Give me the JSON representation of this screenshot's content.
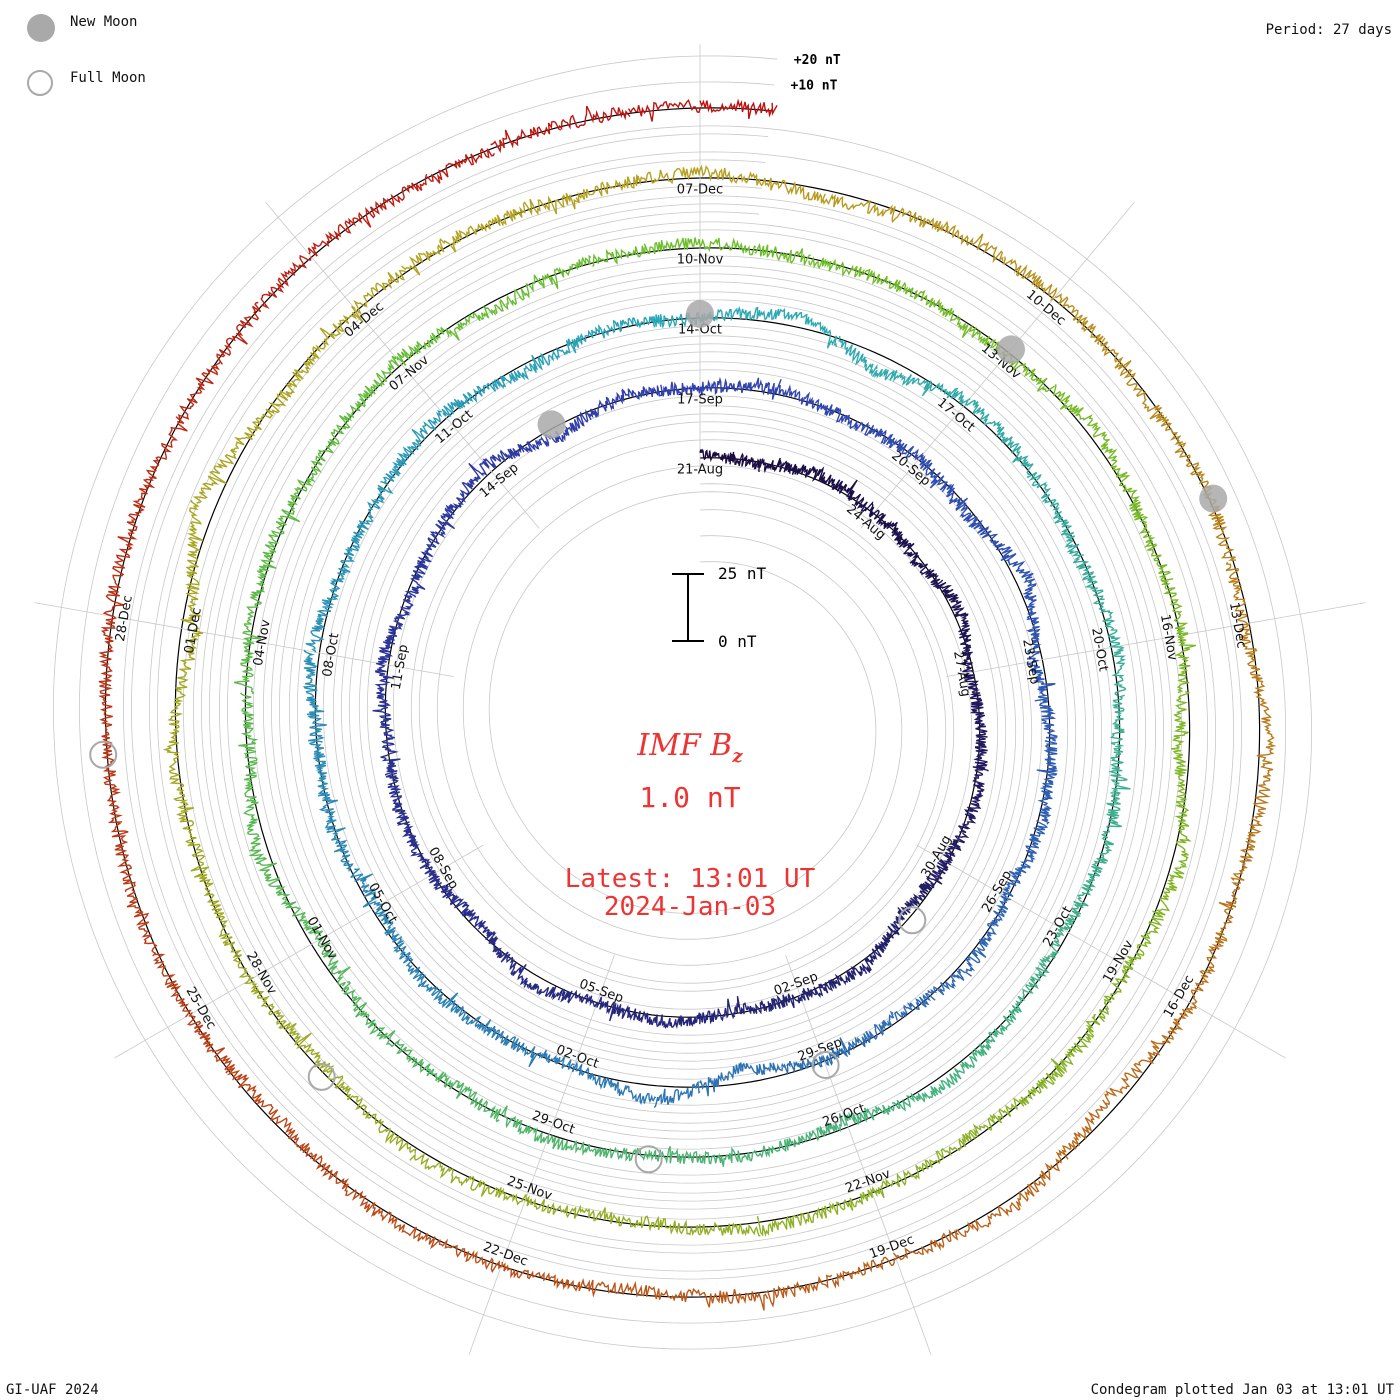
{
  "header": {
    "period": "Period: 27 days",
    "legend": [
      {
        "label": "New Moon",
        "icon": "new-moon-icon",
        "color": "#a9a9a9"
      },
      {
        "label": "Full Moon",
        "icon": "full-moon-icon",
        "color": "#a9a9a9"
      }
    ]
  },
  "footer": {
    "credit": "GI-UAF 2024",
    "plotted": "Condegram plotted Jan 03 at 13:01 UT"
  },
  "center": {
    "title_main": "IMF B",
    "title_sub": "z",
    "value": "1.0 nT",
    "latest_time": "Latest: 13:01 UT",
    "latest_date": "2024-Jan-03",
    "text_color": "#ee3333"
  },
  "scale_bar": {
    "top_label": "25 nT",
    "bottom_label": "0 nT",
    "span_nT": 25
  },
  "chart_data": {
    "type": "line",
    "title": "IMF Bz",
    "plot_style": "condegram spiral",
    "period_days": 27,
    "spiral_start": "2023-Aug-21",
    "spiral_end": "2024-Jan-03 13:01",
    "reference_levels_nT": [
      10,
      20
    ],
    "reference_labels": [
      "+10 nT",
      "+20 nT"
    ],
    "grid": true,
    "date_labels": [
      "21-Aug",
      "24-Aug",
      "27-Aug",
      "30-Aug",
      "02-Sep",
      "05-Sep",
      "08-Sep",
      "11-Sep",
      "14-Sep",
      "17-Sep",
      "20-Sep",
      "23-Sep",
      "26-Sep",
      "29-Sep",
      "02-Oct",
      "05-Oct",
      "08-Oct",
      "11-Oct",
      "14-Oct",
      "17-Oct",
      "20-Oct",
      "23-Oct",
      "26-Oct",
      "29-Oct",
      "01-Nov",
      "04-Nov",
      "07-Nov",
      "10-Nov",
      "13-Nov",
      "16-Nov",
      "19-Nov",
      "22-Nov",
      "25-Nov",
      "28-Nov",
      "01-Dec",
      "04-Dec",
      "07-Dec",
      "10-Dec",
      "13-Dec",
      "16-Dec",
      "19-Dec",
      "22-Dec",
      "25-Dec",
      "28-Dec"
    ],
    "rotations": [
      {
        "start": "2023-Aug-21",
        "color": "#1a0a40"
      },
      {
        "start": "2023-Sep-17",
        "color": "#3040b0"
      },
      {
        "start": "2023-Oct-14",
        "color": "#2aa8b8"
      },
      {
        "start": "2023-Nov-10",
        "color": "#6cbf2a"
      },
      {
        "start": "2023-Dec-07",
        "color": "#b8a020"
      },
      {
        "start": "2024-Jan-03",
        "color": "#c01010"
      }
    ],
    "new_moons": [
      "2023-Sep-15",
      "2023-Oct-14",
      "2023-Nov-13",
      "2023-Dec-12"
    ],
    "full_moons": [
      "2023-Aug-31",
      "2023-Sep-29",
      "2023-Oct-28",
      "2023-Nov-27",
      "2023-Dec-27"
    ],
    "bz_daily_mean_nT": [
      1.2,
      -0.8,
      2.1,
      0.4,
      -1.5,
      3.0,
      -2.2,
      0.9,
      1.7,
      -0.6,
      -3.4,
      2.8,
      0.2,
      -1.1,
      1.9,
      -0.3,
      4.2,
      -2.9,
      0.7,
      1.1,
      -0.9,
      2.5,
      -1.8,
      0.5,
      3.3,
      -4.1,
      1.4,
      -0.2,
      2.0,
      -1.3,
      0.6,
      -2.5,
      5.1,
      -3.8,
      0.8,
      1.6,
      -0.7,
      2.9,
      -1.9,
      0.3,
      -5.6,
      6.2,
      -1.0,
      0.4,
      1.8,
      -2.7,
      0.9,
      -0.5,
      3.6,
      -1.2,
      0.2,
      2.3,
      -3.0,
      1.1,
      -0.4,
      4.5,
      -6.8,
      3.1,
      0.6,
      -1.4,
      2.2,
      -0.9,
      1.3,
      -2.1,
      0.5,
      3.8,
      -2.6,
      1.0,
      -0.3,
      2.7,
      -1.6,
      0.8,
      -4.4,
      5.0,
      -1.7,
      0.9,
      1.5,
      -0.8,
      2.4,
      -3.3,
      0.7,
      1.9,
      -1.1,
      0.3,
      -2.2,
      3.5,
      -0.6,
      1.2,
      -5.2,
      4.0,
      -0.5,
      1.6,
      -2.0,
      0.4,
      2.8,
      -1.4,
      0.1,
      3.2,
      -2.4,
      1.0,
      -0.7,
      2.1,
      -6.0,
      7.3,
      -1.9,
      0.6,
      1.4,
      -0.9,
      2.6,
      -3.7,
      0.8,
      1.7,
      -1.2,
      0.5,
      -2.8,
      3.9,
      -0.4,
      1.1,
      -4.6,
      2.9,
      -0.3,
      1.5,
      -1.8,
      0.9,
      2.0,
      -2.3,
      0.6,
      1.0,
      -0.8,
      1.3,
      0.4,
      -0.6,
      1.2,
      -1.0,
      0.7
    ]
  }
}
